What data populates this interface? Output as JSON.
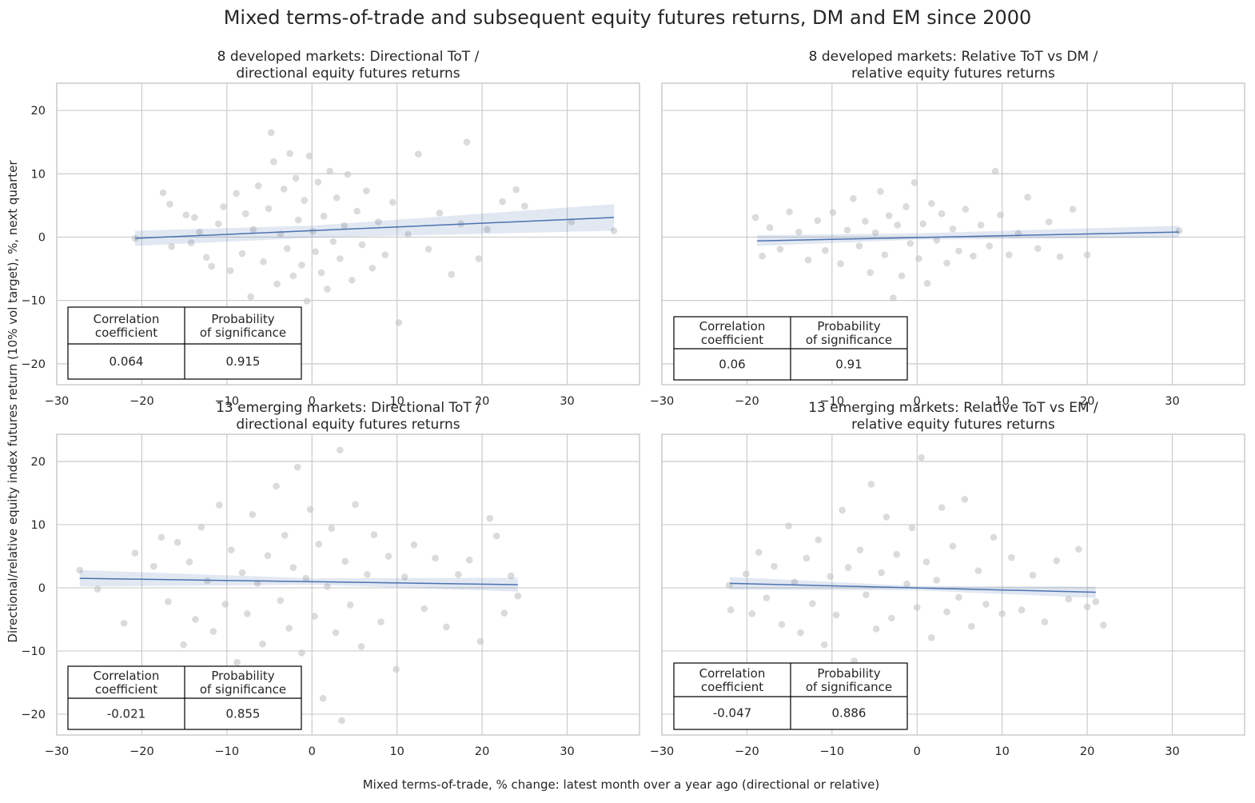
{
  "figure": {
    "title": "Mixed terms-of-trade and subsequent equity futures returns, DM and EM since 2000",
    "xlabel": "Mixed terms-of-trade, % change: latest month over a year ago (directional or relative)",
    "ylabel": "Directional/relative equity index futures return (10% vol target), %, next quarter",
    "table_headers": [
      "Correlation\ncoefficient",
      "Probability\nof significance"
    ]
  },
  "chart_data": [
    {
      "type": "scatter",
      "title": "8 developed markets: Directional ToT /\ndirectional equity futures returns",
      "xlim": [
        -30,
        38.5
      ],
      "ylim": [
        -23.3,
        24.3
      ],
      "xticks": [
        -30,
        -20,
        -10,
        0,
        10,
        20,
        30
      ],
      "yticks": [
        -20,
        -10,
        0,
        10,
        20
      ],
      "tick_labels_x": [
        "−30",
        "−20",
        "−10",
        "0",
        "10",
        "20",
        "30"
      ],
      "tick_labels_y": [
        "−20",
        "−10",
        "0",
        "10",
        "20"
      ],
      "grid": true,
      "regression": {
        "x": [
          -20.8,
          35.5
        ],
        "y": [
          -0.2,
          3.1
        ],
        "band": [
          [
            -20.8,
            -1.4,
            1.0
          ],
          [
            0,
            -0.1,
            1.8
          ],
          [
            35.5,
            1.0,
            5.2
          ]
        ]
      },
      "points": [
        [
          -20.8,
          -0.2
        ],
        [
          -17.5,
          7.0
        ],
        [
          -16.7,
          5.2
        ],
        [
          -16.5,
          -1.5
        ],
        [
          -14.8,
          3.5
        ],
        [
          -14.2,
          -0.9
        ],
        [
          -13.8,
          3.1
        ],
        [
          -13.2,
          0.8
        ],
        [
          -12.4,
          -3.2
        ],
        [
          -11.8,
          -4.6
        ],
        [
          -11.0,
          2.1
        ],
        [
          -10.4,
          4.8
        ],
        [
          -9.6,
          -5.3
        ],
        [
          -8.9,
          6.9
        ],
        [
          -8.2,
          -2.6
        ],
        [
          -7.8,
          3.7
        ],
        [
          -7.2,
          -9.4
        ],
        [
          -6.9,
          1.2
        ],
        [
          -6.3,
          8.1
        ],
        [
          -5.7,
          -3.9
        ],
        [
          -5.1,
          4.5
        ],
        [
          -4.8,
          16.5
        ],
        [
          -4.5,
          11.9
        ],
        [
          -4.1,
          -7.4
        ],
        [
          -3.7,
          0.5
        ],
        [
          -3.3,
          7.6
        ],
        [
          -2.9,
          -1.8
        ],
        [
          -2.6,
          13.2
        ],
        [
          -2.2,
          -6.1
        ],
        [
          -1.9,
          9.3
        ],
        [
          -1.6,
          2.7
        ],
        [
          -1.2,
          -4.4
        ],
        [
          -0.9,
          5.8
        ],
        [
          -0.6,
          -10.1
        ],
        [
          -0.3,
          12.8
        ],
        [
          0.1,
          0.9
        ],
        [
          0.4,
          -2.3
        ],
        [
          0.7,
          8.7
        ],
        [
          1.1,
          -5.6
        ],
        [
          1.4,
          3.3
        ],
        [
          1.8,
          -8.2
        ],
        [
          2.1,
          10.4
        ],
        [
          2.5,
          -0.7
        ],
        [
          2.9,
          6.2
        ],
        [
          3.3,
          -3.4
        ],
        [
          3.8,
          1.8
        ],
        [
          4.2,
          9.9
        ],
        [
          4.7,
          -6.8
        ],
        [
          5.3,
          4.1
        ],
        [
          5.9,
          -1.2
        ],
        [
          6.4,
          7.3
        ],
        [
          7.1,
          -4.9
        ],
        [
          7.8,
          2.4
        ],
        [
          8.6,
          -2.8
        ],
        [
          9.5,
          5.5
        ],
        [
          10.2,
          -13.5
        ],
        [
          11.3,
          0.4
        ],
        [
          12.5,
          13.1
        ],
        [
          13.7,
          -1.9
        ],
        [
          15.0,
          3.8
        ],
        [
          16.4,
          -5.9
        ],
        [
          17.5,
          2.1
        ],
        [
          18.2,
          15.0
        ],
        [
          19.6,
          -3.4
        ],
        [
          20.6,
          1.2
        ],
        [
          22.4,
          5.6
        ],
        [
          24.0,
          7.5
        ],
        [
          25.0,
          4.9
        ],
        [
          30.5,
          2.4
        ],
        [
          35.5,
          1.0
        ]
      ]
    },
    {
      "type": "scatter",
      "title": "8 developed markets: Relative ToT vs DM /\nrelative equity futures returns",
      "xlim": [
        -30,
        38.5
      ],
      "ylim": [
        -23.3,
        24.3
      ],
      "xticks": [
        -30,
        -20,
        -10,
        0,
        10,
        20,
        30
      ],
      "yticks": [
        -20,
        -10,
        0,
        10,
        20
      ],
      "tick_labels_x": [
        "−30",
        "−20",
        "−10",
        "0",
        "10",
        "20",
        "30"
      ],
      "grid": true,
      "regression": {
        "x": [
          -18.8,
          30.8
        ],
        "y": [
          -0.6,
          0.8
        ],
        "band": [
          [
            -18.8,
            -1.4,
            0.3
          ],
          [
            0,
            -0.4,
            0.6
          ],
          [
            30.8,
            -0.1,
            1.8
          ]
        ]
      },
      "points": [
        [
          -19.0,
          3.1
        ],
        [
          -18.2,
          -3.0
        ],
        [
          -17.3,
          1.5
        ],
        [
          -16.1,
          -1.9
        ],
        [
          -15.0,
          4.0
        ],
        [
          -13.9,
          0.8
        ],
        [
          -12.8,
          -3.6
        ],
        [
          -11.7,
          2.6
        ],
        [
          -10.8,
          -2.1
        ],
        [
          -9.9,
          3.9
        ],
        [
          -9.0,
          -4.2
        ],
        [
          -8.2,
          1.1
        ],
        [
          -7.5,
          6.1
        ],
        [
          -6.8,
          -1.4
        ],
        [
          -6.1,
          2.5
        ],
        [
          -5.5,
          -5.6
        ],
        [
          -4.9,
          0.7
        ],
        [
          -4.3,
          7.2
        ],
        [
          -3.8,
          -2.8
        ],
        [
          -3.3,
          3.4
        ],
        [
          -2.8,
          -9.6
        ],
        [
          -2.3,
          1.9
        ],
        [
          -1.8,
          -6.1
        ],
        [
          -1.3,
          4.8
        ],
        [
          -0.8,
          -1.0
        ],
        [
          -0.3,
          8.6
        ],
        [
          0.2,
          -3.4
        ],
        [
          0.7,
          2.1
        ],
        [
          1.2,
          -7.3
        ],
        [
          1.7,
          5.3
        ],
        [
          2.3,
          -0.5
        ],
        [
          2.9,
          3.7
        ],
        [
          3.5,
          -4.1
        ],
        [
          4.2,
          1.3
        ],
        [
          4.9,
          -2.2
        ],
        [
          5.7,
          4.4
        ],
        [
          6.6,
          -3.0
        ],
        [
          7.5,
          1.9
        ],
        [
          8.5,
          -1.4
        ],
        [
          9.2,
          10.4
        ],
        [
          9.8,
          3.5
        ],
        [
          10.8,
          -2.8
        ],
        [
          11.9,
          0.6
        ],
        [
          13.0,
          6.3
        ],
        [
          14.2,
          -1.8
        ],
        [
          15.5,
          2.4
        ],
        [
          16.8,
          -3.1
        ],
        [
          18.3,
          4.4
        ],
        [
          20.0,
          -2.8
        ],
        [
          30.8,
          1.0
        ]
      ]
    },
    {
      "type": "scatter",
      "title": "13 emerging markets: Directional ToT /\ndirectional equity futures returns",
      "xlim": [
        -30,
        38.5
      ],
      "ylim": [
        -23.3,
        24.3
      ],
      "xticks": [
        -30,
        -20,
        -10,
        0,
        10,
        20,
        30
      ],
      "yticks": [
        -20,
        -10,
        0,
        10,
        20
      ],
      "tick_labels_x": [
        "−30",
        "−20",
        "−10",
        "0",
        "10",
        "20",
        "30"
      ],
      "tick_labels_y": [
        "−20",
        "−10",
        "0",
        "10",
        "20"
      ],
      "grid": true,
      "regression": {
        "x": [
          -27.3,
          24.2
        ],
        "y": [
          1.5,
          0.5
        ],
        "band": [
          [
            -27.3,
            0.2,
            2.8
          ],
          [
            0,
            0.5,
            1.5
          ],
          [
            24.2,
            -0.6,
            1.6
          ]
        ]
      },
      "points": [
        [
          -27.3,
          2.8
        ],
        [
          -25.2,
          -0.2
        ],
        [
          -22.1,
          -5.6
        ],
        [
          -20.8,
          5.5
        ],
        [
          -18.6,
          3.4
        ],
        [
          -17.7,
          8.0
        ],
        [
          -16.9,
          -2.2
        ],
        [
          -15.8,
          7.2
        ],
        [
          -15.1,
          -9.0
        ],
        [
          -14.4,
          4.1
        ],
        [
          -13.7,
          -5.0
        ],
        [
          -13.0,
          9.6
        ],
        [
          -12.3,
          1.1
        ],
        [
          -11.6,
          -6.9
        ],
        [
          -10.9,
          13.1
        ],
        [
          -10.2,
          -2.6
        ],
        [
          -9.5,
          6.0
        ],
        [
          -8.8,
          -11.8
        ],
        [
          -8.2,
          2.4
        ],
        [
          -7.6,
          -4.1
        ],
        [
          -7.0,
          11.6
        ],
        [
          -6.4,
          0.7
        ],
        [
          -5.8,
          -8.9
        ],
        [
          -5.2,
          5.1
        ],
        [
          -4.7,
          -14.8
        ],
        [
          -4.2,
          16.1
        ],
        [
          -3.7,
          -2.0
        ],
        [
          -3.2,
          8.3
        ],
        [
          -2.7,
          -6.4
        ],
        [
          -2.2,
          3.2
        ],
        [
          -1.7,
          19.1
        ],
        [
          -1.2,
          -10.3
        ],
        [
          -0.7,
          1.5
        ],
        [
          -0.2,
          12.4
        ],
        [
          0.3,
          -4.5
        ],
        [
          0.8,
          6.9
        ],
        [
          1.3,
          -17.5
        ],
        [
          1.8,
          0.2
        ],
        [
          2.3,
          9.4
        ],
        [
          2.8,
          -7.1
        ],
        [
          3.3,
          21.8
        ],
        [
          3.5,
          -21.0
        ],
        [
          3.9,
          4.2
        ],
        [
          4.5,
          -2.7
        ],
        [
          5.1,
          13.2
        ],
        [
          5.8,
          -9.3
        ],
        [
          6.5,
          2.1
        ],
        [
          7.3,
          8.4
        ],
        [
          8.1,
          -5.4
        ],
        [
          9.0,
          5.0
        ],
        [
          9.9,
          -12.9
        ],
        [
          10.9,
          1.7
        ],
        [
          12.0,
          6.8
        ],
        [
          13.2,
          -3.3
        ],
        [
          14.5,
          4.7
        ],
        [
          15.8,
          -6.2
        ],
        [
          17.2,
          2.1
        ],
        [
          18.5,
          4.4
        ],
        [
          19.8,
          -8.5
        ],
        [
          20.9,
          11.0
        ],
        [
          21.7,
          8.2
        ],
        [
          22.6,
          -4.0
        ],
        [
          23.4,
          1.9
        ],
        [
          24.2,
          -1.3
        ]
      ]
    },
    {
      "type": "scatter",
      "title": "13 emerging markets: Relative ToT vs EM /\nrelative equity futures returns",
      "xlim": [
        -30,
        38.5
      ],
      "ylim": [
        -23.3,
        24.3
      ],
      "xticks": [
        -30,
        -20,
        -10,
        0,
        10,
        20,
        30
      ],
      "yticks": [
        -20,
        -10,
        0,
        10,
        20
      ],
      "tick_labels_x": [
        "−30",
        "−20",
        "−10",
        "0",
        "10",
        "20",
        "30"
      ],
      "grid": true,
      "regression": {
        "x": [
          -22.0,
          21.0
        ],
        "y": [
          0.7,
          -0.7
        ],
        "band": [
          [
            -22.0,
            -0.3,
            1.7
          ],
          [
            0,
            -0.4,
            0.3
          ],
          [
            21.0,
            -1.6,
            0.2
          ]
        ]
      },
      "points": [
        [
          -22.1,
          0.4
        ],
        [
          -21.9,
          -3.5
        ],
        [
          -20.1,
          2.2
        ],
        [
          -19.4,
          -4.1
        ],
        [
          -18.6,
          5.6
        ],
        [
          -17.7,
          -1.6
        ],
        [
          -16.8,
          3.4
        ],
        [
          -15.9,
          -5.8
        ],
        [
          -15.1,
          9.8
        ],
        [
          -14.4,
          0.9
        ],
        [
          -13.7,
          -7.1
        ],
        [
          -13.0,
          4.7
        ],
        [
          -12.3,
          -2.5
        ],
        [
          -11.6,
          7.6
        ],
        [
          -10.9,
          -9.0
        ],
        [
          -10.2,
          1.8
        ],
        [
          -9.5,
          -4.3
        ],
        [
          -8.8,
          12.3
        ],
        [
          -8.1,
          3.2
        ],
        [
          -7.4,
          -11.6
        ],
        [
          -6.7,
          6.0
        ],
        [
          -6.0,
          -1.1
        ],
        [
          -5.4,
          16.4
        ],
        [
          -4.8,
          -6.5
        ],
        [
          -4.2,
          2.4
        ],
        [
          -3.6,
          11.2
        ],
        [
          -3.0,
          -4.8
        ],
        [
          -2.4,
          5.3
        ],
        [
          -1.8,
          -13.2
        ],
        [
          -1.2,
          0.6
        ],
        [
          -0.6,
          9.5
        ],
        [
          0.0,
          -3.1
        ],
        [
          0.5,
          20.6
        ],
        [
          1.1,
          4.1
        ],
        [
          1.7,
          -7.9
        ],
        [
          2.3,
          1.2
        ],
        [
          2.9,
          12.7
        ],
        [
          3.5,
          -3.8
        ],
        [
          4.2,
          6.6
        ],
        [
          4.9,
          -1.5
        ],
        [
          5.6,
          14.0
        ],
        [
          6.4,
          -6.1
        ],
        [
          7.2,
          2.7
        ],
        [
          8.1,
          -2.6
        ],
        [
          9.0,
          8.0
        ],
        [
          10.0,
          -4.1
        ],
        [
          11.1,
          4.8
        ],
        [
          12.3,
          -3.5
        ],
        [
          13.6,
          2.0
        ],
        [
          15.0,
          -5.4
        ],
        [
          16.4,
          4.3
        ],
        [
          17.8,
          -1.8
        ],
        [
          19.0,
          6.1
        ],
        [
          20.0,
          -3.0
        ],
        [
          21.0,
          -2.2
        ],
        [
          21.9,
          -5.9
        ]
      ]
    }
  ],
  "stats": [
    {
      "corr": "0.064",
      "prob": "0.915"
    },
    {
      "corr": "0.06",
      "prob": "0.91"
    },
    {
      "corr": "-0.021",
      "prob": "0.855"
    },
    {
      "corr": "-0.047",
      "prob": "0.886"
    }
  ],
  "colors": {
    "points": "#c8c8c8",
    "regression_line": "#4c72b0",
    "band": "#4c72b0",
    "grid": "#cccccc",
    "frame": "#cccccc",
    "text": "#262626"
  }
}
